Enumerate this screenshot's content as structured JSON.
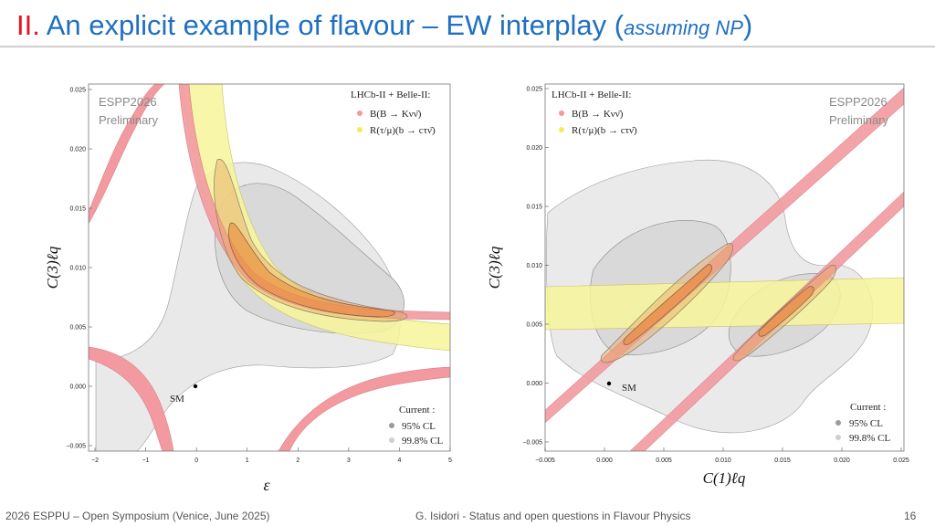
{
  "slide": {
    "title_num": "II.",
    "title_main": " An explicit example of flavour –  EW interplay (",
    "title_italic": "assuming NP",
    "title_close": ")",
    "footer_left": "2026 ESPPU – Open Symposium (Venice, June 2025)",
    "footer_center": "G. Isidori - Status and open questions in Flavour Physics",
    "page_number": "16"
  },
  "colors": {
    "title": "#1f6fc2",
    "title_num": "#e8121e",
    "pink": "#f29aa0",
    "yellow": "#f6f59a",
    "orange": "#f0a060",
    "gray": "#d7d7d7"
  },
  "chart_data": [
    {
      "type": "scatter",
      "watermark": [
        "ESPP2026",
        "Preliminary"
      ],
      "xlabel": "ε",
      "ylabel": "C(3)ℓq",
      "xlim": [
        -2,
        5
      ],
      "ylim": [
        -0.006,
        0.025
      ],
      "xticks": [
        "−2",
        "−1",
        "0",
        "1",
        "2",
        "3",
        "4",
        "5"
      ],
      "yticks": [
        "−0.005",
        "0.000",
        "0.005",
        "0.010",
        "0.015",
        "0.020",
        "0.025"
      ],
      "legend_top": {
        "title": "LHCb-II + Belle-II:",
        "items": [
          "B(B → Kνν̄)",
          "R(τ/μ)(b → cτν̄)"
        ],
        "colors": [
          "#f29aa0",
          "#f6f59a"
        ],
        "position": "top-right"
      },
      "legend_bottom": {
        "title": "Current :",
        "items": [
          "95% CL",
          "99.8% CL"
        ],
        "colors": [
          "#9a9a9a",
          "#cfcfcf"
        ],
        "position": "bottom-right"
      },
      "points": [
        {
          "label": "SM",
          "x": 0.0,
          "y": 0.0
        }
      ],
      "grid": false
    },
    {
      "type": "scatter",
      "watermark": [
        "ESPP2026",
        "Preliminary"
      ],
      "xlabel": "C(1)ℓq",
      "ylabel": "C(3)ℓq",
      "xlim": [
        -0.0055,
        0.025
      ],
      "ylim": [
        -0.0055,
        0.025
      ],
      "xticks": [
        "−0.005",
        "0.000",
        "0.005",
        "0.010",
        "0.015",
        "0.020",
        "0.025"
      ],
      "yticks": [
        "−0.005",
        "0.000",
        "0.005",
        "0.010",
        "0.015",
        "0.020",
        "0.025"
      ],
      "legend_top": {
        "title": "LHCb-II + Belle-II:",
        "items": [
          "B(B → Kνν̄)",
          "R(τ/μ)(b → cτν̄)"
        ],
        "colors": [
          "#f29aa0",
          "#f6f59a"
        ],
        "position": "top-left"
      },
      "legend_bottom": {
        "title": "Current :",
        "items": [
          "95% CL",
          "99.8% CL"
        ],
        "colors": [
          "#9a9a9a",
          "#cfcfcf"
        ],
        "position": "bottom-right"
      },
      "points": [
        {
          "label": "SM",
          "x": 0.0,
          "y": 0.0
        }
      ],
      "grid": false
    }
  ]
}
